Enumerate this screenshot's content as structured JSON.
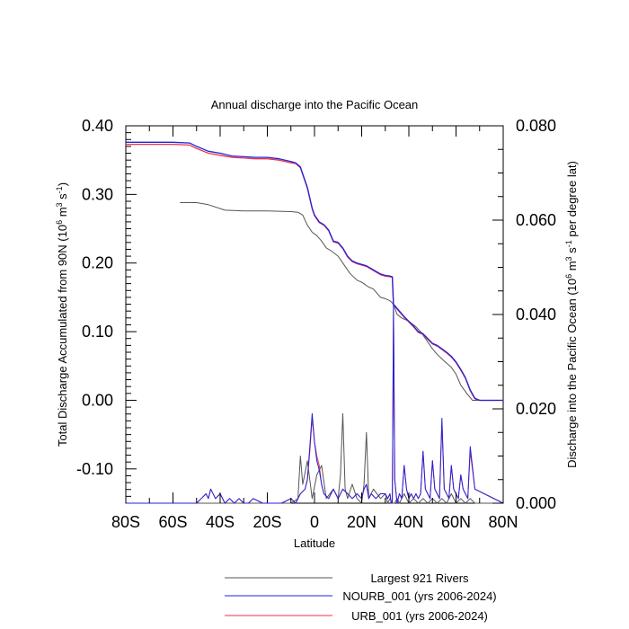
{
  "chart_data": {
    "type": "line",
    "title": "Annual discharge into the Pacific Ocean",
    "xlabel": "Latitude",
    "ylabel_left_main": "Total Discharge Accumulated from 90N (10",
    "ylabel_left_exp1": "6",
    "ylabel_left_mid": " m",
    "ylabel_left_exp2": "3",
    "ylabel_left_mid2": " s",
    "ylabel_left_exp3": "-1",
    "ylabel_left_end": ")",
    "ylabel_right_main": "Discharge into the Pacific Ocean (10",
    "ylabel_right_exp1": "6",
    "ylabel_right_mid": " m",
    "ylabel_right_exp2": "3",
    "ylabel_right_mid2": " s",
    "ylabel_right_exp3": "-1",
    "ylabel_right_end": " per degree lat)",
    "xlim": [
      -80,
      80
    ],
    "ylim_left": [
      -0.15,
      0.4
    ],
    "ylim_right": [
      0.0,
      0.08
    ],
    "x_ticks": [
      -80,
      -60,
      -40,
      -20,
      0,
      20,
      40,
      60,
      80
    ],
    "x_tick_labels": [
      "80S",
      "60S",
      "40S",
      "20S",
      "0",
      "20N",
      "40N",
      "60N",
      "80N"
    ],
    "y_left_ticks": [
      -0.1,
      0.0,
      0.1,
      0.2,
      0.3,
      0.4
    ],
    "y_left_tick_labels": [
      "-0.10",
      "0.00",
      "0.10",
      "0.20",
      "0.30",
      "0.40"
    ],
    "y_right_ticks": [
      0.0,
      0.02,
      0.04,
      0.06,
      0.08
    ],
    "y_right_tick_labels": [
      "0.000",
      "0.020",
      "0.040",
      "0.060",
      "0.080"
    ],
    "grid": false,
    "legend_position": "bottom",
    "series": [
      {
        "name": "Largest 921 Rivers",
        "color": "#555555",
        "axis": "left",
        "x": [
          -57,
          -50,
          -45,
          -38,
          -30,
          -20,
          -10,
          -7,
          -5,
          -3,
          -1,
          1,
          3,
          5,
          7,
          10,
          12,
          15,
          18,
          20,
          23,
          25,
          28,
          30,
          32,
          33,
          34,
          35,
          37,
          40,
          43,
          45,
          47,
          50,
          52,
          55,
          58,
          60,
          62,
          65,
          67,
          70,
          80
        ],
        "y": [
          0.288,
          0.288,
          0.285,
          0.277,
          0.276,
          0.276,
          0.275,
          0.274,
          0.27,
          0.255,
          0.245,
          0.24,
          0.232,
          0.222,
          0.218,
          0.21,
          0.2,
          0.185,
          0.175,
          0.172,
          0.165,
          0.162,
          0.15,
          0.148,
          0.145,
          0.142,
          0.135,
          0.125,
          0.12,
          0.115,
          0.107,
          0.1,
          0.09,
          0.075,
          0.067,
          0.057,
          0.048,
          0.038,
          0.022,
          0.008,
          0.0,
          0.0,
          0.0
        ]
      },
      {
        "name": "NOURB_001 (yrs 2006-2024)",
        "color": "#2222dd",
        "axis": "left",
        "x": [
          -80,
          -70,
          -60,
          -53,
          -50,
          -45,
          -40,
          -35,
          -30,
          -25,
          -20,
          -15,
          -10,
          -8,
          -6,
          -5,
          -3,
          -1,
          0,
          2,
          4,
          6,
          8,
          10,
          12,
          14,
          16,
          18,
          20,
          22,
          24,
          26,
          28,
          30,
          32,
          33,
          33.5,
          34,
          36,
          38,
          40,
          42,
          44,
          46,
          48,
          50,
          52,
          54,
          56,
          58,
          60,
          62,
          64,
          66,
          68,
          70,
          80
        ],
        "y": [
          0.376,
          0.376,
          0.376,
          0.375,
          0.37,
          0.363,
          0.36,
          0.356,
          0.355,
          0.354,
          0.354,
          0.352,
          0.348,
          0.346,
          0.34,
          0.33,
          0.31,
          0.28,
          0.27,
          0.26,
          0.256,
          0.248,
          0.232,
          0.23,
          0.222,
          0.21,
          0.203,
          0.2,
          0.198,
          0.196,
          0.192,
          0.188,
          0.184,
          0.182,
          0.181,
          0.18,
          0.14,
          0.138,
          0.13,
          0.122,
          0.115,
          0.108,
          0.1,
          0.097,
          0.09,
          0.083,
          0.08,
          0.075,
          0.07,
          0.064,
          0.056,
          0.045,
          0.033,
          0.015,
          0.003,
          0.0,
          0.0
        ]
      },
      {
        "name": "URB_001 (yrs 2006-2024)",
        "color": "#ee3344",
        "axis": "left",
        "x": [
          -80,
          -70,
          -60,
          -53,
          -50,
          -45,
          -40,
          -35,
          -30,
          -25,
          -20,
          -15,
          -10,
          -8,
          -6,
          -5,
          -3,
          -1,
          0,
          2,
          4,
          6,
          8,
          10,
          12,
          14,
          16,
          18,
          20,
          22,
          24,
          26,
          28,
          30,
          32,
          33,
          33.5,
          34,
          36,
          38,
          40,
          42,
          44,
          46,
          48,
          50,
          52,
          54,
          56,
          58,
          60,
          62,
          64,
          66,
          68,
          70,
          80
        ],
        "y": [
          0.373,
          0.373,
          0.373,
          0.372,
          0.367,
          0.36,
          0.357,
          0.354,
          0.353,
          0.352,
          0.352,
          0.35,
          0.346,
          0.345,
          0.339,
          0.329,
          0.309,
          0.279,
          0.269,
          0.259,
          0.255,
          0.247,
          0.231,
          0.229,
          0.221,
          0.209,
          0.202,
          0.199,
          0.197,
          0.195,
          0.191,
          0.187,
          0.183,
          0.181,
          0.18,
          0.179,
          0.139,
          0.137,
          0.129,
          0.121,
          0.114,
          0.107,
          0.099,
          0.096,
          0.089,
          0.082,
          0.079,
          0.074,
          0.069,
          0.063,
          0.055,
          0.044,
          0.032,
          0.014,
          0.002,
          0.0,
          0.0
        ]
      },
      {
        "name": "Largest 921 Rivers",
        "color": "#555555",
        "axis": "right",
        "x": [
          -80,
          -10,
          -7,
          -6,
          -5,
          -3,
          -1,
          1,
          3,
          5,
          8,
          10,
          11,
          12,
          13,
          14,
          16,
          18,
          20,
          21,
          22,
          23,
          25,
          28,
          30,
          31,
          32,
          33,
          34,
          35,
          36,
          38,
          40,
          42,
          44,
          46,
          48,
          50,
          52,
          54,
          56,
          58,
          60,
          62,
          64,
          66,
          68,
          80
        ],
        "y": [
          0.0,
          0.0,
          0.001,
          0.01,
          0.004,
          0.009,
          0.001,
          0.006,
          0.008,
          0.001,
          0.003,
          0.001,
          0.006,
          0.019,
          0.003,
          0.001,
          0.004,
          0.001,
          0.0,
          0.004,
          0.015,
          0.001,
          0.003,
          0.001,
          0.002,
          0.0,
          0.001,
          0.0,
          0.0,
          0.001,
          0.0,
          0.002,
          0.0,
          0.001,
          0.0,
          0.001,
          0.0,
          0.001,
          0.0,
          0.001,
          0.0,
          0.002,
          0.0,
          0.001,
          0.0,
          0.001,
          0.0,
          0.0
        ]
      },
      {
        "name": "NOURB_001 (yrs 2006-2024)",
        "color": "#2222dd",
        "axis": "right",
        "x": [
          -80,
          -55,
          -52,
          -50,
          -48,
          -46,
          -45,
          -44,
          -42,
          -40,
          -38,
          -36,
          -34,
          -32,
          -30,
          -28,
          -26,
          -22,
          -18,
          -14,
          -10,
          -8,
          -6,
          -4,
          -3,
          -2,
          -1,
          0,
          1,
          2,
          3,
          4,
          6,
          8,
          9,
          10,
          12,
          14,
          16,
          18,
          20,
          21,
          22,
          23,
          24,
          26,
          28,
          30,
          31,
          32,
          32.5,
          33,
          33.5,
          34,
          35,
          36,
          37,
          38,
          39,
          40,
          41,
          42,
          43,
          44,
          45,
          46,
          47,
          48,
          49,
          50,
          51,
          52,
          53,
          54,
          55,
          56,
          57,
          58,
          59,
          60,
          61,
          62,
          63,
          64,
          65,
          66,
          68,
          80
        ],
        "y": [
          0.0,
          0.0,
          0.0,
          0.0,
          0.001,
          0.002,
          0.001,
          0.003,
          0.001,
          0.002,
          0.0,
          0.001,
          0.0,
          0.001,
          0.0,
          0.0,
          0.001,
          0.0,
          0.0,
          0.0,
          0.001,
          0.0,
          0.002,
          0.003,
          0.005,
          0.012,
          0.019,
          0.013,
          0.009,
          0.007,
          0.004,
          0.002,
          0.001,
          0.003,
          0.002,
          0.001,
          0.003,
          0.002,
          0.001,
          0.002,
          0.001,
          0.003,
          0.004,
          0.001,
          0.002,
          0.001,
          0.002,
          0.002,
          0.001,
          0.002,
          0.0,
          0.0,
          0.042,
          0.005,
          0.0,
          0.002,
          0.001,
          0.008,
          0.003,
          0.001,
          0.002,
          0.001,
          0.002,
          0.001,
          0.002,
          0.011,
          0.003,
          0.002,
          0.001,
          0.009,
          0.003,
          0.002,
          0.001,
          0.018,
          0.003,
          0.002,
          0.001,
          0.008,
          0.003,
          0.002,
          0.001,
          0.006,
          0.003,
          0.002,
          0.001,
          0.012,
          0.003,
          0.0
        ]
      },
      {
        "name": "URB_001 (yrs 2006-2024)",
        "color": "#ee3344",
        "axis": "right",
        "x": [
          -80,
          -55,
          -52,
          -50,
          -48,
          -46,
          -45,
          -44,
          -42,
          -40,
          -38,
          -36,
          -34,
          -32,
          -30,
          -28,
          -26,
          -22,
          -18,
          -14,
          -10,
          -8,
          -6,
          -4,
          -3,
          -2,
          -1,
          0,
          1,
          2,
          3,
          4,
          6,
          8,
          9,
          10,
          12,
          14,
          16,
          18,
          20,
          21,
          22,
          23,
          24,
          26,
          28,
          30,
          31,
          32,
          32.5,
          33,
          33.5,
          34,
          35,
          36,
          37,
          38,
          39,
          40,
          41,
          42,
          43,
          44,
          45,
          46,
          47,
          48,
          49,
          50,
          51,
          52,
          53,
          54,
          55,
          56,
          57,
          58,
          59,
          60,
          61,
          62,
          63,
          64,
          65,
          66,
          68,
          80
        ],
        "y": [
          0.0,
          0.0,
          0.0,
          0.0,
          0.001,
          0.002,
          0.001,
          0.003,
          0.001,
          0.002,
          0.0,
          0.001,
          0.0,
          0.001,
          0.0,
          0.0,
          0.001,
          0.0,
          0.0,
          0.0,
          0.001,
          0.0,
          0.002,
          0.003,
          0.005,
          0.011,
          0.018,
          0.013,
          0.01,
          0.008,
          0.004,
          0.002,
          0.001,
          0.003,
          0.002,
          0.001,
          0.003,
          0.002,
          0.001,
          0.002,
          0.001,
          0.003,
          0.004,
          0.001,
          0.002,
          0.001,
          0.002,
          0.002,
          0.001,
          0.002,
          0.0,
          0.0,
          0.041,
          0.005,
          0.0,
          0.002,
          0.001,
          0.008,
          0.003,
          0.001,
          0.002,
          0.001,
          0.002,
          0.001,
          0.002,
          0.011,
          0.003,
          0.002,
          0.001,
          0.009,
          0.003,
          0.002,
          0.001,
          0.017,
          0.003,
          0.002,
          0.001,
          0.008,
          0.003,
          0.002,
          0.001,
          0.006,
          0.003,
          0.002,
          0.001,
          0.011,
          0.003,
          0.0
        ]
      }
    ],
    "legend": [
      {
        "label": "Largest 921 Rivers",
        "color": "#555555"
      },
      {
        "label": "NOURB_001 (yrs 2006-2024)",
        "color": "#2222dd"
      },
      {
        "label": "URB_001 (yrs 2006-2024)",
        "color": "#ee3344"
      }
    ]
  }
}
